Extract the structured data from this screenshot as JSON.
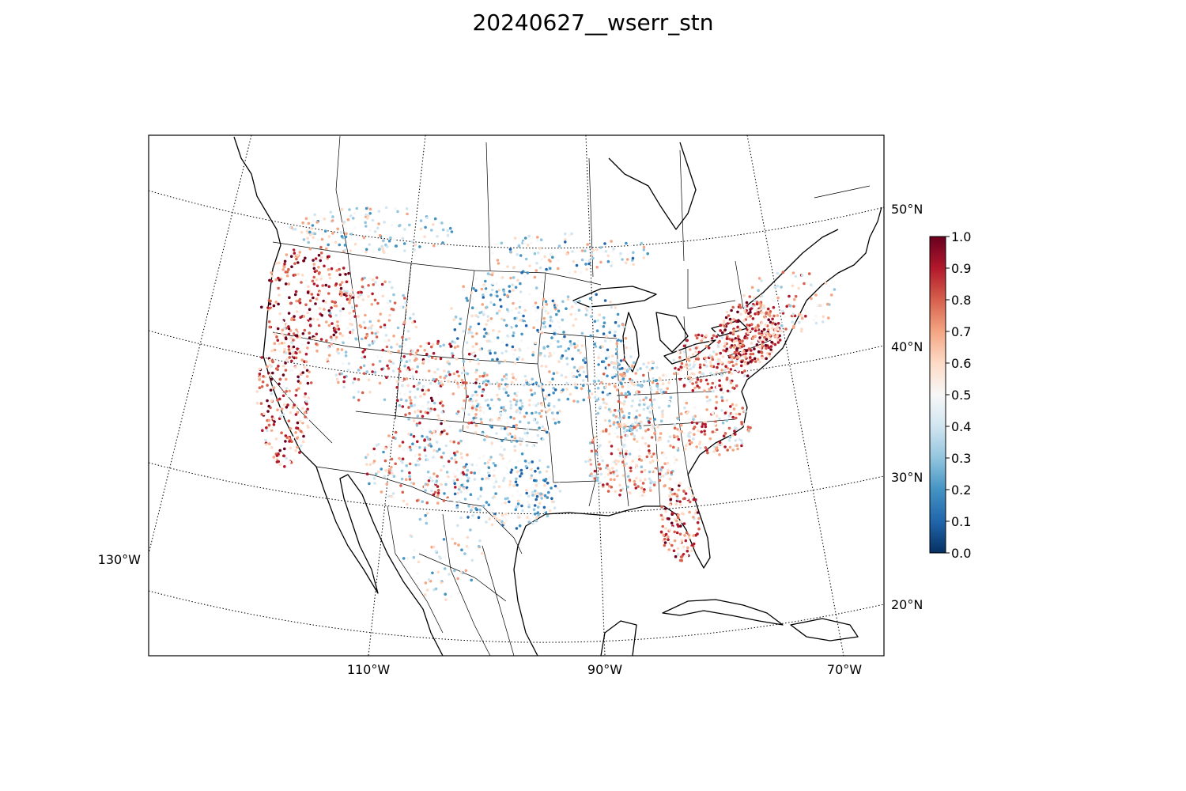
{
  "title": "20240627__wserr_stn",
  "map": {
    "projection": "lambert-conformal-conic",
    "lat_labels": [
      "50°N",
      "40°N",
      "30°N",
      "20°N"
    ],
    "lon_labels_bottom": [
      "110°W",
      "90°W",
      "70°W"
    ],
    "lon_label_left": "130°W",
    "graticule_style": "dotted"
  },
  "colorbar": {
    "colormap": "RdBu_r",
    "range": [
      0.0,
      1.0
    ],
    "ticks": [
      "0.0",
      "0.1",
      "0.2",
      "0.3",
      "0.4",
      "0.5",
      "0.6",
      "0.7",
      "0.8",
      "0.9",
      "1.0"
    ],
    "colors": [
      "#053061",
      "#2166ac",
      "#4393c3",
      "#92c5de",
      "#d1e5f0",
      "#f7f7f7",
      "#fddbc7",
      "#f4a582",
      "#d6604d",
      "#b2182b",
      "#67001f"
    ]
  },
  "stations": {
    "description_visible": "thousands of station points colored by wserr value",
    "regions": [
      {
        "name": "Pacific Northwest",
        "dominant": "high"
      },
      {
        "name": "California coast",
        "dominant": "high"
      },
      {
        "name": "Northeast",
        "dominant": "high"
      },
      {
        "name": "Florida",
        "dominant": "high"
      },
      {
        "name": "Great Plains",
        "dominant": "low"
      },
      {
        "name": "Texas",
        "dominant": "low"
      },
      {
        "name": "Upper Midwest",
        "dominant": "low"
      }
    ]
  }
}
